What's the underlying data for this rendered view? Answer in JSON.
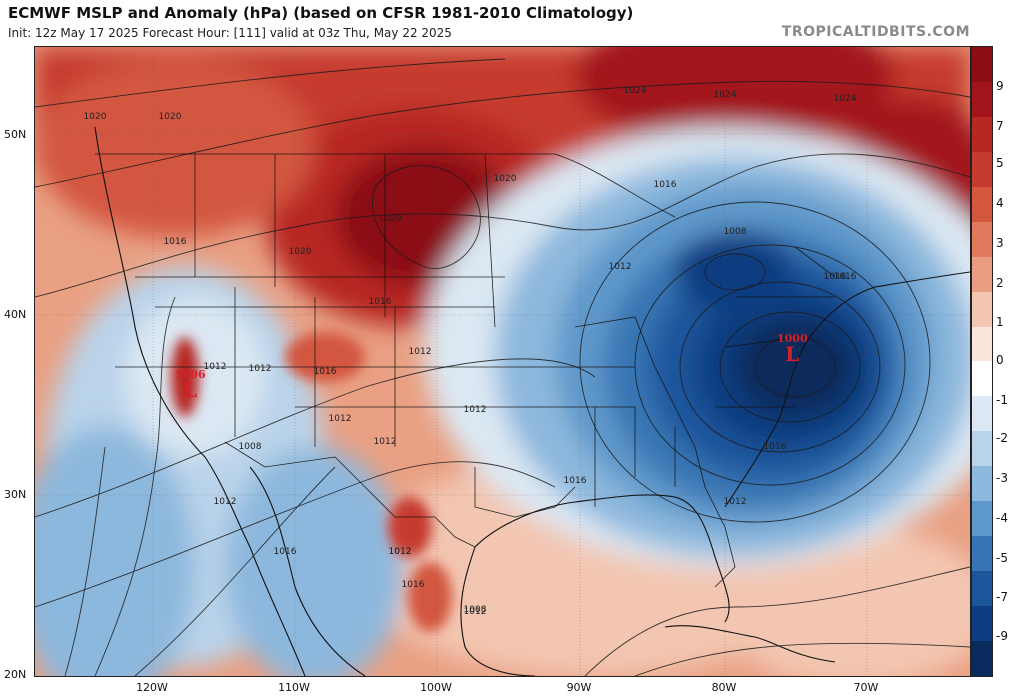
{
  "header": {
    "title": "ECMWF MSLP and Anomaly (hPa) (based on CFSR 1981-2010 Climatology)",
    "subtitle": "Init: 12z May 17 2025   Forecast Hour: [111]   valid at 03z Thu, May 22 2025",
    "watermark": "TROPICALTIDBITS.COM"
  },
  "axes": {
    "lat_labels": [
      "50N",
      "40N",
      "30N",
      "20N"
    ],
    "lon_labels": [
      "120W",
      "110W",
      "100W",
      "90W",
      "80W",
      "70W"
    ]
  },
  "colorbar": {
    "labels": [
      "9",
      "7",
      "5",
      "4",
      "3",
      "2",
      "1",
      "0",
      "-1",
      "-2",
      "-3",
      "-4",
      "-5",
      "-7",
      "-9"
    ],
    "colors": [
      "#8b0e17",
      "#a3151c",
      "#b72823",
      "#c63b2f",
      "#d3573f",
      "#df7a5c",
      "#e99d82",
      "#f3c6b1",
      "#f9e5dc",
      "#ffffff",
      "#dbe8f3",
      "#b9d3ea",
      "#8db8dd",
      "#5e98ca",
      "#3874b3",
      "#1d559b",
      "#0d3d80",
      "#082a5c"
    ]
  },
  "lows": [
    {
      "value": "1006",
      "symbol": "L"
    },
    {
      "value": "1000",
      "symbol": "L"
    }
  ],
  "contour_labels": [
    "1020",
    "1020",
    "1024",
    "1020",
    "1024",
    "1016",
    "1020",
    "1016",
    "1020",
    "1016",
    "1012",
    "1016",
    "1008",
    "1012",
    "1016",
    "1012",
    "1012",
    "1012",
    "1012",
    "1008",
    "1012",
    "1016",
    "1012",
    "1016",
    "1012",
    "1008",
    "1012",
    "1016",
    "1012",
    "1016",
    "1012",
    "1016",
    "1024"
  ]
}
